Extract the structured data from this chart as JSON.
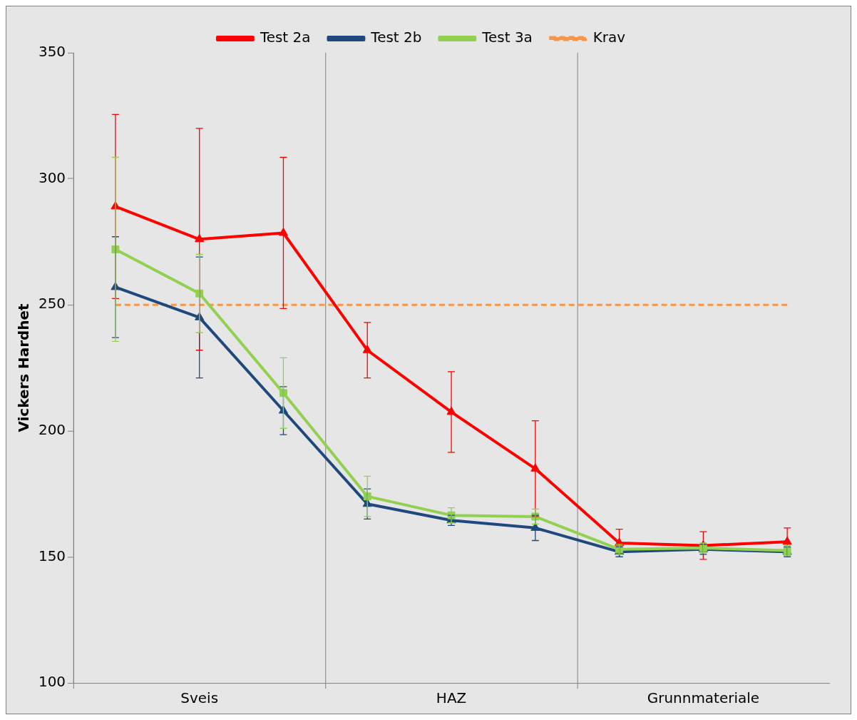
{
  "chart_data": {
    "type": "line",
    "ylabel": "Vickers Hardhet",
    "categories": [
      null,
      "Sveis",
      null,
      null,
      "HAZ",
      null,
      null,
      "Grunnmateriale",
      null
    ],
    "series": [
      {
        "name": "Test 2a",
        "color": "#ff0000",
        "marker": "triangle",
        "values": [
          289,
          276,
          278.5,
          232,
          207.5,
          185,
          155.5,
          154.5,
          156
        ],
        "errors": [
          36.5,
          44,
          30,
          11,
          16,
          19,
          5.5,
          5.5,
          5.5
        ]
      },
      {
        "name": "Test 2b",
        "color": "#1f497d",
        "marker": "triangle",
        "values": [
          257,
          245,
          208,
          171,
          164.5,
          161.5,
          152,
          153,
          152
        ],
        "errors": [
          20,
          24,
          9.5,
          6,
          2,
          5,
          2,
          2,
          2
        ]
      },
      {
        "name": "Test 3a",
        "color": "#92d050",
        "marker": "square",
        "values": [
          272,
          254.5,
          215,
          174,
          166.5,
          166,
          153,
          153.5,
          152.5
        ],
        "errors": [
          36.5,
          15.5,
          14,
          8,
          3,
          3,
          2,
          2,
          2
        ]
      }
    ],
    "ref_lines": [
      {
        "axis": "y",
        "value": 250,
        "label": "Krav",
        "color": "#f79646",
        "line_style": "dashed"
      }
    ],
    "ylim": [
      100,
      350
    ],
    "yticks": [
      100,
      150,
      200,
      250,
      300,
      350
    ],
    "grid": "x",
    "legend": "top"
  }
}
